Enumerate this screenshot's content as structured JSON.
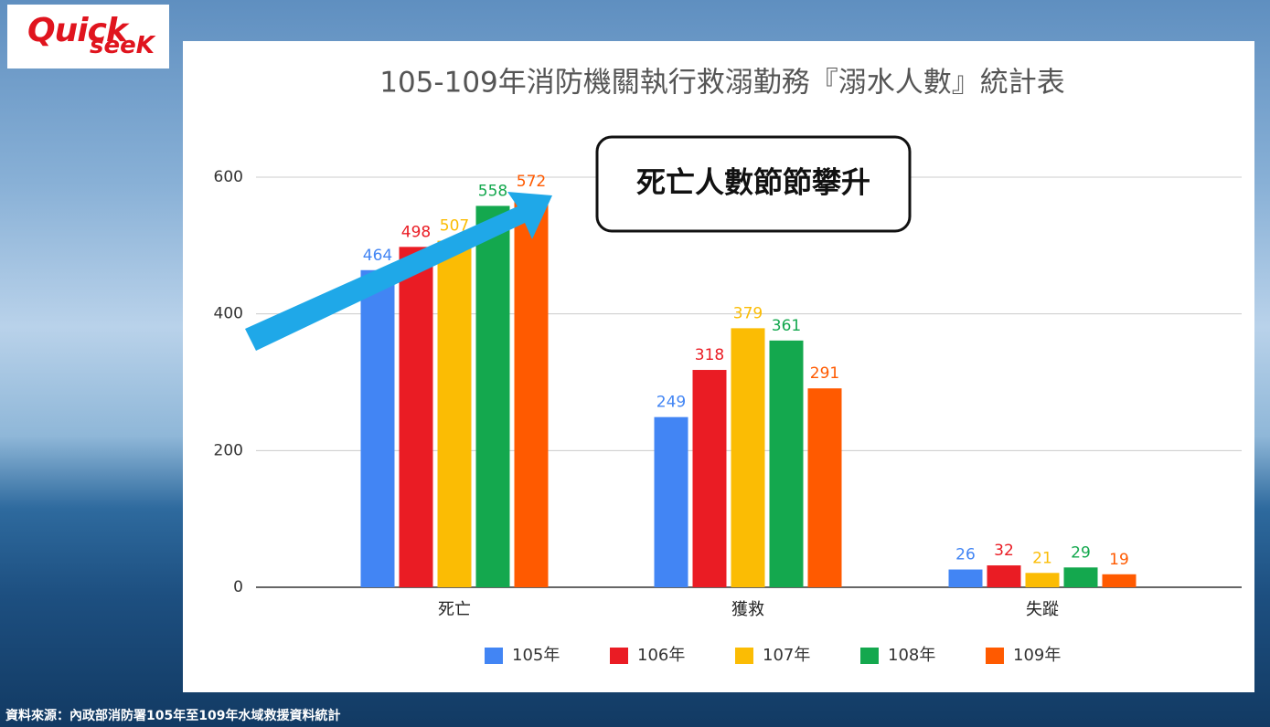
{
  "logo": {
    "line1": "Quick",
    "line2": "seeK"
  },
  "source": "資料來源：內政部消防署105年至109年水域救援資料統計",
  "chart_data": {
    "type": "bar",
    "title": "105-109年消防機關執行救溺勤務『溺水人數』統計表",
    "annotation": "死亡人數節節攀升",
    "categories": [
      "死亡",
      "獲救",
      "失蹤"
    ],
    "series": [
      {
        "name": "105年",
        "color": "#4285f4",
        "values": [
          464,
          249,
          26
        ]
      },
      {
        "name": "106年",
        "color": "#ea1c24",
        "values": [
          498,
          318,
          32
        ]
      },
      {
        "name": "107年",
        "color": "#fbbc04",
        "values": [
          507,
          379,
          21
        ]
      },
      {
        "name": "108年",
        "color": "#14a84e",
        "values": [
          558,
          361,
          29
        ]
      },
      {
        "name": "109年",
        "color": "#ff5a00",
        "values": [
          572,
          291,
          19
        ]
      }
    ],
    "ylim": [
      0,
      600
    ],
    "yticks": [
      0,
      200,
      400,
      600
    ],
    "grid": true,
    "legend": "bottom"
  }
}
